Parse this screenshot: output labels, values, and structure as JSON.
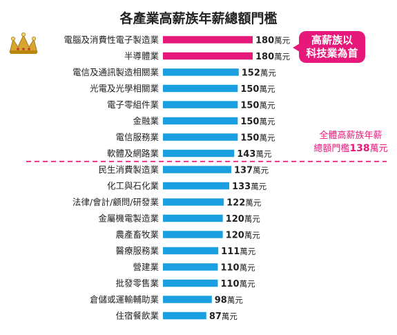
{
  "chart_data": {
    "type": "bar",
    "orientation": "horizontal",
    "title": "各產業高薪族年薪總額門檻",
    "unit": "萬元",
    "categories": [
      "電腦及消費性電子製造業",
      "半導體業",
      "電信及通訊製造相關業",
      "光電及光學相關業",
      "電子零組件業",
      "金融業",
      "電信服務業",
      "軟體及網路業",
      "民生消費製造業",
      "化工與石化業",
      "法律/會計/顧問/研發業",
      "金屬機電製造業",
      "農產畜牧業",
      "醫療服務業",
      "營建業",
      "批發零售業",
      "倉儲或運輸輔助業",
      "住宿餐飲業"
    ],
    "values": [
      180,
      180,
      152,
      150,
      150,
      150,
      150,
      143,
      137,
      133,
      122,
      120,
      120,
      111,
      110,
      110,
      98,
      87
    ],
    "value_labels": [
      "180",
      "180",
      "152",
      "150",
      "150",
      "150",
      "150",
      "143",
      "137",
      "133",
      "122",
      "120",
      "120",
      "111",
      "110",
      "110",
      "98",
      "87"
    ],
    "highlight_count": 2,
    "divider_after_index": 7,
    "xlim": [
      0,
      180
    ],
    "grid": false,
    "legend": "none",
    "callout": {
      "line1": "高薪族以",
      "line2": "科技業為首"
    },
    "note": {
      "line1": "全體高薪族年薪",
      "line2_prefix": "總額門檻",
      "line2_value": "138",
      "line2_unit": "萬元"
    }
  },
  "colors": {
    "highlight_bar": "#e6197a",
    "bar": "#1aa0e0",
    "accent": "#e6197a",
    "text": "#222222",
    "crown": "#d8a531"
  },
  "icons": {
    "crown": "crown-icon"
  }
}
